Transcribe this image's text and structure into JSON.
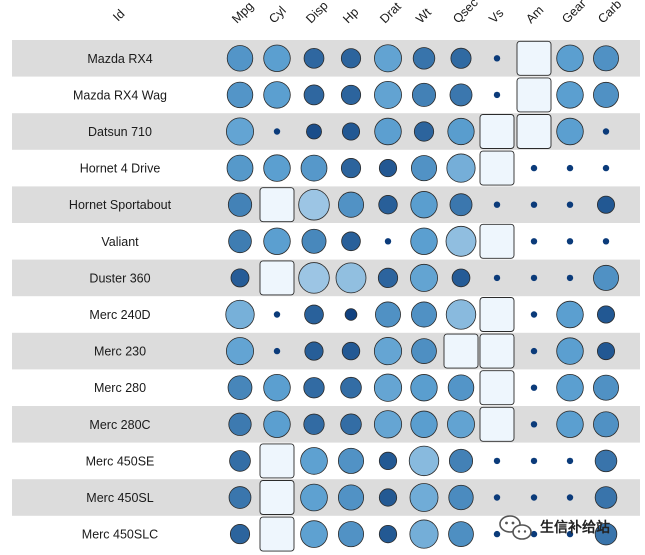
{
  "chart_data": {
    "type": "heatmap",
    "corner_label": "Id",
    "columns": [
      "Mpg",
      "Cyl",
      "Disp",
      "Hp",
      "Drat",
      "Wt",
      "Qsec",
      "Vs",
      "Am",
      "Gear",
      "Carb"
    ],
    "rows": [
      {
        "label": "Mazda RX4",
        "values": [
          0.451,
          0.5,
          0.222,
          0.205,
          0.525,
          0.283,
          0.233,
          0.0,
          1.0,
          0.5,
          0.429
        ]
      },
      {
        "label": "Mazda RX4 Wag",
        "values": [
          0.451,
          0.5,
          0.222,
          0.205,
          0.525,
          0.348,
          0.3,
          0.0,
          1.0,
          0.5,
          0.429
        ]
      },
      {
        "label": "Datsun 710",
        "values": [
          0.528,
          0.0,
          0.092,
          0.145,
          0.502,
          0.206,
          0.489,
          1.0,
          1.0,
          0.5,
          0.0
        ]
      },
      {
        "label": "Hornet 4 Drive",
        "values": [
          0.468,
          0.5,
          0.466,
          0.205,
          0.147,
          0.435,
          0.588,
          1.0,
          0.0,
          0.0,
          0.0
        ]
      },
      {
        "label": "Hornet Sportabout",
        "values": [
          0.353,
          1.0,
          0.721,
          0.435,
          0.18,
          0.493,
          0.3,
          0.0,
          0.0,
          0.0,
          0.143
        ]
      },
      {
        "label": "Valiant",
        "values": [
          0.328,
          0.5,
          0.384,
          0.187,
          0.0,
          0.498,
          0.681,
          1.0,
          0.0,
          0.0,
          0.0
        ]
      },
      {
        "label": "Duster 360",
        "values": [
          0.166,
          1.0,
          0.721,
          0.682,
          0.207,
          0.526,
          0.16,
          0.0,
          0.0,
          0.0,
          0.429
        ]
      },
      {
        "label": "Merc 240D",
        "values": [
          0.596,
          0.0,
          0.189,
          0.035,
          0.429,
          0.429,
          0.655,
          1.0,
          0.0,
          0.5,
          0.143
        ]
      },
      {
        "label": "Merc 230",
        "values": [
          0.528,
          0.0,
          0.174,
          0.152,
          0.535,
          0.419,
          1.0,
          1.0,
          0.0,
          0.5,
          0.143
        ]
      },
      {
        "label": "Merc 280",
        "values": [
          0.374,
          0.5,
          0.241,
          0.251,
          0.535,
          0.493,
          0.452,
          1.0,
          0.0,
          0.5,
          0.429
        ]
      },
      {
        "label": "Merc 280C",
        "values": [
          0.315,
          0.5,
          0.241,
          0.251,
          0.535,
          0.493,
          0.524,
          1.0,
          0.0,
          0.5,
          0.429
        ]
      },
      {
        "label": "Merc 450SE",
        "values": [
          0.255,
          1.0,
          0.51,
          0.435,
          0.148,
          0.654,
          0.348,
          0.0,
          0.0,
          0.0,
          0.286
        ]
      },
      {
        "label": "Merc 450SL",
        "values": [
          0.294,
          1.0,
          0.51,
          0.435,
          0.148,
          0.573,
          0.4,
          0.0,
          0.0,
          0.0,
          0.286
        ]
      },
      {
        "label": "Merc 450SLC",
        "values": [
          0.204,
          1.0,
          0.51,
          0.435,
          0.148,
          0.586,
          0.419,
          0.0,
          0.0,
          0.0,
          0.286
        ]
      }
    ],
    "scale": "min-max normalized per column (0-1)",
    "encoding": "size and lightness increase with value; maximum shown as square",
    "grid": false,
    "legend": "none",
    "colors": {
      "band": "#dcdcdc",
      "background": "#ffffff",
      "low": "#0b3b7a",
      "mid": "#5b9fd0",
      "high": "#eef6fd",
      "outline": "#2b2b2b"
    }
  },
  "watermark": {
    "text": "生信补给站",
    "icon": "wechat-icon"
  }
}
